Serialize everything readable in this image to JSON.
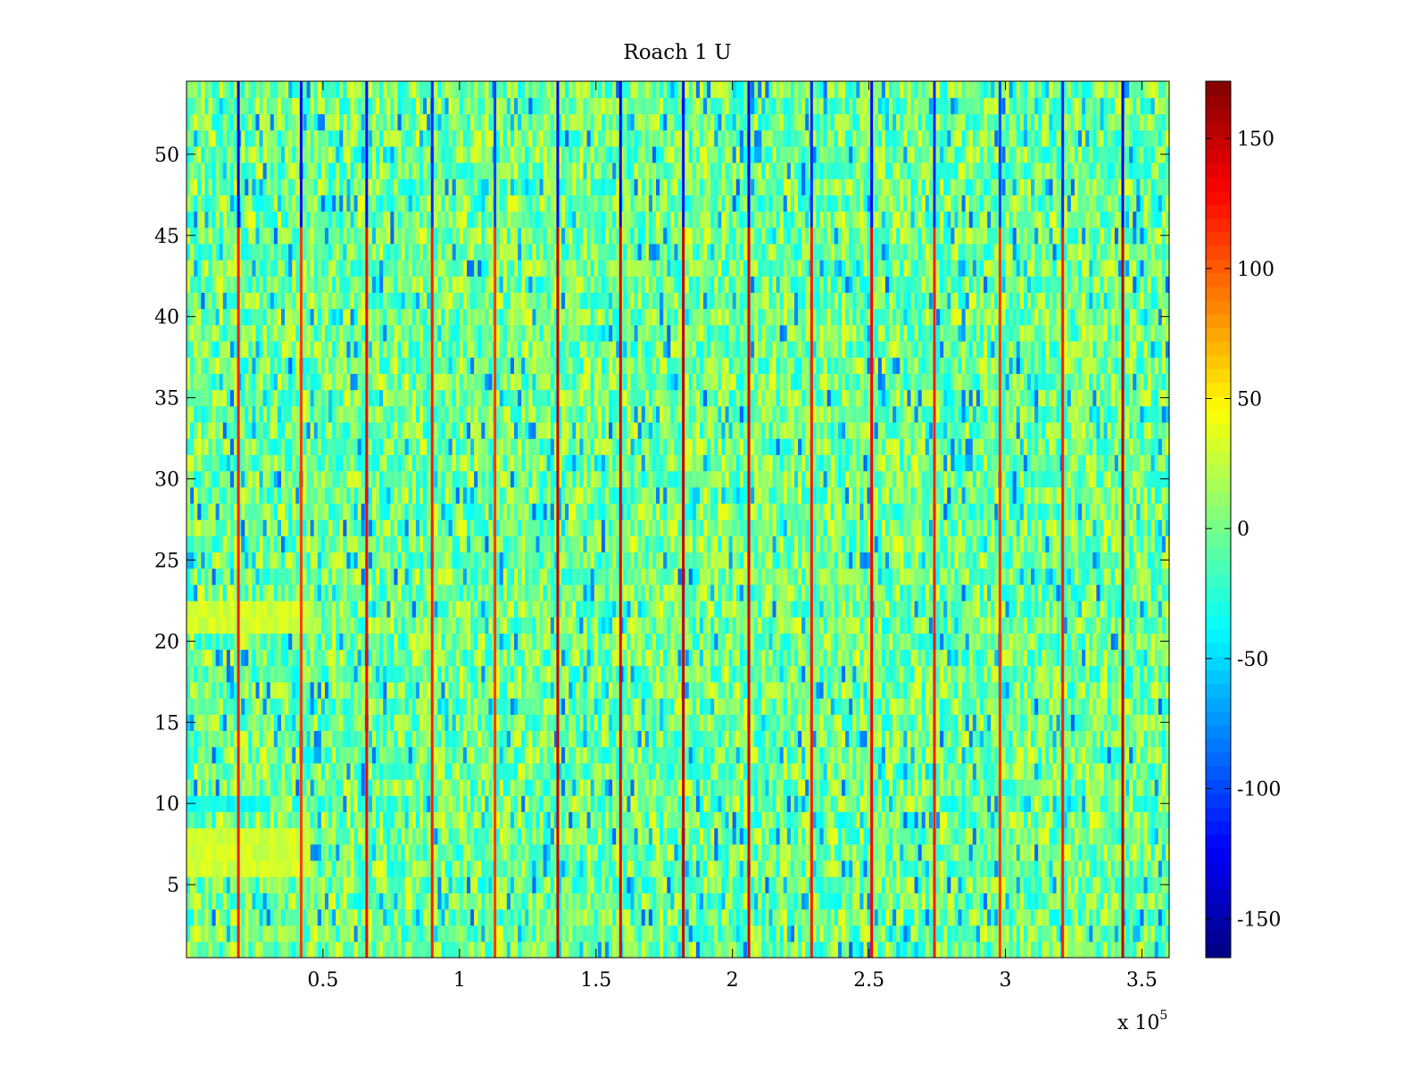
{
  "chart_data": {
    "type": "heatmap",
    "title": "Roach 1 U",
    "xlabel": "",
    "ylabel": "",
    "x_multiplier_label": {
      "prefix": "x 10",
      "exponent": "5"
    },
    "x_range": [
      0,
      360000
    ],
    "y_range": [
      0.5,
      54.5
    ],
    "n_rows": 54,
    "x_ticks": [
      {
        "value": 0.5,
        "label": "0.5"
      },
      {
        "value": 1.0,
        "label": "1"
      },
      {
        "value": 1.5,
        "label": "1.5"
      },
      {
        "value": 2.0,
        "label": "2"
      },
      {
        "value": 2.5,
        "label": "2.5"
      },
      {
        "value": 3.0,
        "label": "3"
      },
      {
        "value": 3.5,
        "label": "3.5"
      }
    ],
    "x_tick_scale": 100000,
    "y_ticks": [
      {
        "value": 5,
        "label": "5"
      },
      {
        "value": 10,
        "label": "10"
      },
      {
        "value": 15,
        "label": "15"
      },
      {
        "value": 20,
        "label": "20"
      },
      {
        "value": 25,
        "label": "25"
      },
      {
        "value": 30,
        "label": "30"
      },
      {
        "value": 35,
        "label": "35"
      },
      {
        "value": 40,
        "label": "40"
      },
      {
        "value": 45,
        "label": "45"
      },
      {
        "value": 50,
        "label": "50"
      }
    ],
    "colorbar": {
      "colormap": "jet",
      "range": [
        -165,
        172
      ],
      "ticks": [
        {
          "value": -150,
          "label": "-150"
        },
        {
          "value": -100,
          "label": "-100"
        },
        {
          "value": -50,
          "label": "-50"
        },
        {
          "value": 0,
          "label": "0"
        },
        {
          "value": 50,
          "label": "50"
        },
        {
          "value": 100,
          "label": "100"
        },
        {
          "value": 150,
          "label": "150"
        }
      ]
    },
    "background_value_range": [
      -40,
      40
    ],
    "event_columns": [
      {
        "x": 19000,
        "value_lower": 120,
        "value_upper": -130
      },
      {
        "x": 42000,
        "value_lower": 110,
        "value_upper": -120
      },
      {
        "x": 66000,
        "value_lower": 130,
        "value_upper": -120
      },
      {
        "x": 90000,
        "value_lower": 120,
        "value_upper": -110
      },
      {
        "x": 113000,
        "value_lower": 110,
        "value_upper": -100
      },
      {
        "x": 136000,
        "value_lower": 150,
        "value_upper": -120
      },
      {
        "x": 159000,
        "value_lower": 140,
        "value_upper": -130
      },
      {
        "x": 182000,
        "value_lower": 150,
        "value_upper": -120
      },
      {
        "x": 206000,
        "value_lower": 140,
        "value_upper": -130
      },
      {
        "x": 229000,
        "value_lower": 120,
        "value_upper": -110
      },
      {
        "x": 251000,
        "value_lower": 130,
        "value_upper": -120
      },
      {
        "x": 274000,
        "value_lower": 120,
        "value_upper": -110
      },
      {
        "x": 298000,
        "value_lower": 110,
        "value_upper": -100
      },
      {
        "x": 321000,
        "value_lower": 120,
        "value_upper": -110
      },
      {
        "x": 343000,
        "value_lower": 150,
        "value_upper": -130
      }
    ],
    "event_split_row": 45,
    "warm_band_rows": [
      {
        "row_from": 6,
        "row_to": 8,
        "x_from": 0,
        "x_to": 45000,
        "value": 30
      },
      {
        "row_from": 21,
        "row_to": 22,
        "x_from": 0,
        "x_to": 45000,
        "value": 30
      },
      {
        "row_from": 10,
        "row_to": 10,
        "x_from": 0,
        "x_to": 30000,
        "value": -35
      }
    ]
  }
}
